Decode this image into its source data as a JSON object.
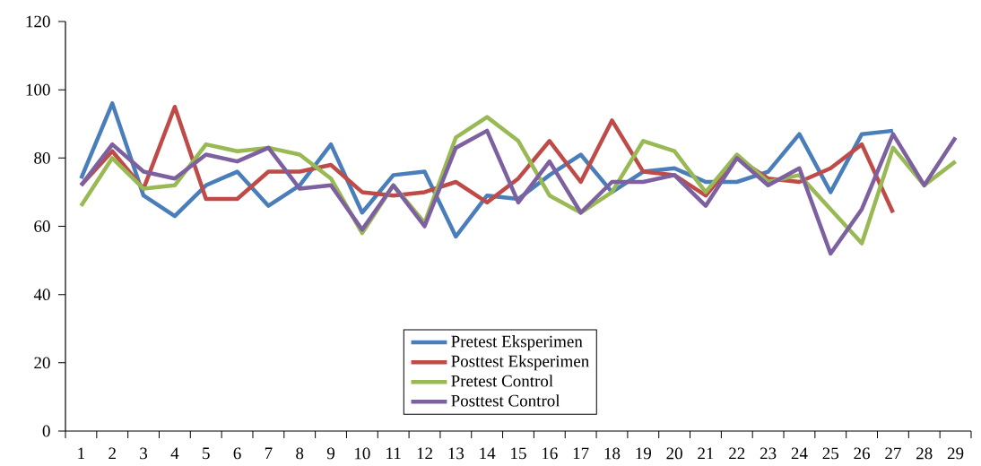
{
  "chart_data": {
    "type": "line",
    "categories": [
      "1",
      "2",
      "3",
      "4",
      "5",
      "6",
      "7",
      "8",
      "9",
      "10",
      "11",
      "12",
      "13",
      "14",
      "15",
      "16",
      "17",
      "18",
      "19",
      "20",
      "21",
      "22",
      "23",
      "24",
      "25",
      "26",
      "27",
      "28",
      "29"
    ],
    "series": [
      {
        "name": "Pretest Eksperimen",
        "color": "#4a7ebb",
        "values": [
          74,
          96,
          69,
          63,
          72,
          76,
          66,
          72,
          84,
          64,
          75,
          76,
          57,
          69,
          68,
          75,
          81,
          70,
          76,
          77,
          73,
          73,
          76,
          87,
          70,
          87,
          88,
          null,
          null
        ]
      },
      {
        "name": "Posttest Eksperimen",
        "color": "#be4b48",
        "values": [
          72,
          82,
          71,
          95,
          68,
          68,
          76,
          76,
          78,
          70,
          69,
          70,
          73,
          67,
          74,
          85,
          73,
          91,
          76,
          75,
          69,
          80,
          74,
          73,
          77,
          84,
          64,
          null,
          null
        ]
      },
      {
        "name": "Pretest Control",
        "color": "#98b954",
        "values": [
          66,
          80,
          71,
          72,
          84,
          82,
          83,
          81,
          74,
          58,
          72,
          61,
          86,
          92,
          85,
          69,
          64,
          70,
          85,
          82,
          70,
          81,
          73,
          75,
          65,
          55,
          83,
          72,
          79
        ]
      },
      {
        "name": "Posttest Control",
        "color": "#7d60a0",
        "values": [
          72,
          84,
          76,
          74,
          81,
          79,
          83,
          71,
          72,
          59,
          72,
          60,
          83,
          88,
          67,
          79,
          64,
          73,
          73,
          75,
          66,
          80,
          72,
          77,
          52,
          65,
          87,
          72,
          86
        ]
      }
    ],
    "ylim": [
      0,
      120
    ],
    "yticks": [
      0,
      20,
      40,
      60,
      80,
      100,
      120
    ],
    "legend": "bottom",
    "grid": false,
    "marker": "none",
    "line_style": "solid"
  }
}
